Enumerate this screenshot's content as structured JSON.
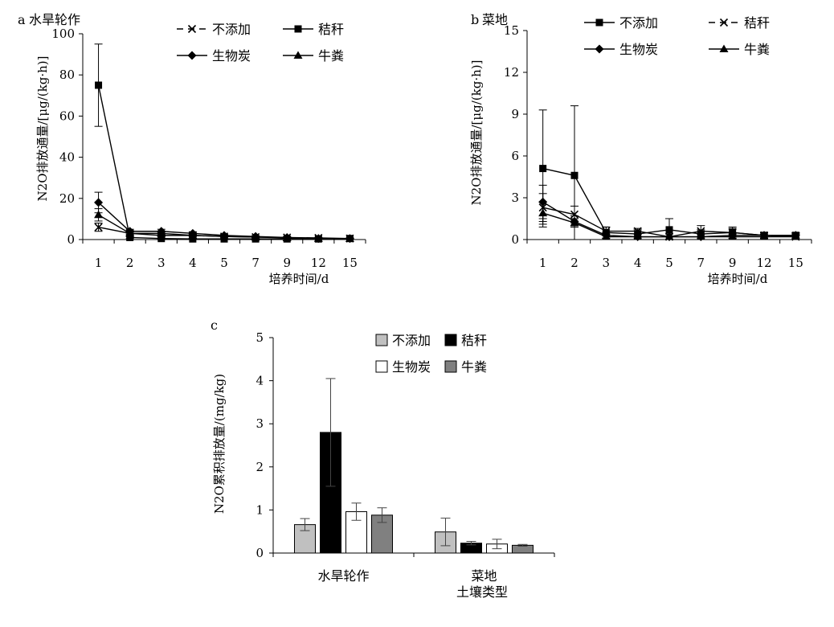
{
  "chart_data": [
    {
      "panel": "a",
      "title": "水旱轮作",
      "type": "line",
      "ylabel": "N2O排放通量/[μg/(kg·h)]",
      "xlabel": "培养时间/d",
      "categories": [
        "1",
        "2",
        "3",
        "4",
        "5",
        "7",
        "9",
        "12",
        "15"
      ],
      "ylim": [
        0,
        100
      ],
      "yticks": [
        "0",
        "20",
        "40",
        "60",
        "80",
        "100"
      ],
      "legend_position": "top-right",
      "series": [
        {
          "name": "不添加",
          "marker": "x",
          "values": [
            6,
            3,
            2,
            2,
            1.5,
            1.2,
            1,
            0.8,
            0.5
          ],
          "errors": [
            2,
            0.6,
            0.5,
            0.5,
            0.4,
            0.3,
            0.3,
            0.2,
            0.2
          ]
        },
        {
          "name": "秸秆",
          "marker": "square",
          "values": [
            75,
            1,
            0.5,
            0.3,
            0.3,
            0.3,
            0.3,
            0.3,
            0.5
          ],
          "errors": [
            20,
            0.5,
            0.3,
            0.2,
            0.2,
            0.2,
            0.2,
            0.2,
            0.3
          ]
        },
        {
          "name": "生物炭",
          "marker": "diamond",
          "values": [
            18,
            4,
            4,
            3,
            2,
            1.5,
            1,
            0.5,
            0.5
          ],
          "errors": [
            5,
            1,
            1,
            0.8,
            0.5,
            0.4,
            0.3,
            0.2,
            0.2
          ]
        },
        {
          "name": "牛粪",
          "marker": "triangle",
          "values": [
            12,
            3,
            3,
            2,
            1.5,
            1.2,
            0.8,
            0.5,
            0.4
          ],
          "errors": [
            3,
            0.8,
            0.7,
            0.5,
            0.4,
            0.3,
            0.3,
            0.2,
            0.2
          ]
        }
      ]
    },
    {
      "panel": "b",
      "title": "菜地",
      "type": "line",
      "ylabel": "N2O排放通量/[μg/(kg·h)]",
      "xlabel": "培养时间/d",
      "categories": [
        "1",
        "2",
        "3",
        "4",
        "5",
        "7",
        "9",
        "12",
        "15"
      ],
      "ylim": [
        0,
        15
      ],
      "yticks": [
        "0",
        "3",
        "6",
        "9",
        "12",
        "15"
      ],
      "legend_position": "top-right",
      "series": [
        {
          "name": "不添加",
          "marker": "square",
          "values": [
            5.1,
            4.6,
            0.5,
            0.4,
            0.7,
            0.4,
            0.5,
            0.3,
            0.3
          ],
          "errors": [
            4.2,
            5.0,
            0.4,
            0.3,
            0.8,
            0.3,
            0.4,
            0.2,
            0.2
          ]
        },
        {
          "name": "秸秆",
          "marker": "x",
          "values": [
            2.3,
            1.8,
            0.6,
            0.6,
            0.2,
            0.6,
            0.5,
            0.3,
            0.2
          ],
          "errors": [
            1.0,
            0.6,
            0.3,
            0.2,
            0.2,
            0.4,
            0.3,
            0.2,
            0.2
          ]
        },
        {
          "name": "生物炭",
          "marker": "diamond",
          "values": [
            2.7,
            1.3,
            0.3,
            0.2,
            0.2,
            0.2,
            0.3,
            0.3,
            0.3
          ],
          "errors": [
            1.2,
            0.4,
            0.2,
            0.2,
            0.2,
            0.2,
            0.2,
            0.2,
            0.2
          ]
        },
        {
          "name": "牛粪",
          "marker": "triangle",
          "values": [
            1.9,
            1.2,
            0.2,
            0.2,
            0.2,
            0.2,
            0.2,
            0.2,
            0.2
          ],
          "errors": [
            0.8,
            0.3,
            0.2,
            0.2,
            0.2,
            0.2,
            0.2,
            0.2,
            0.2
          ]
        }
      ]
    },
    {
      "panel": "c",
      "title": "",
      "type": "bar",
      "ylabel": "N2O累积排放量/(mg/kg)",
      "xlabel": "土壤类型",
      "categories": [
        "水旱轮作",
        "菜地"
      ],
      "ylim": [
        0,
        5
      ],
      "yticks": [
        "0",
        "1",
        "2",
        "3",
        "4",
        "5"
      ],
      "legend_position": "top-center",
      "series": [
        {
          "name": "不添加",
          "color": "#c0c0c0",
          "values": [
            0.66,
            0.49
          ],
          "errors": [
            0.14,
            0.32
          ]
        },
        {
          "name": "秸秆",
          "color": "#000000",
          "values": [
            2.8,
            0.23
          ],
          "errors": [
            1.25,
            0.04
          ]
        },
        {
          "name": "生物炭",
          "color": "#ffffff",
          "values": [
            0.96,
            0.21
          ],
          "errors": [
            0.2,
            0.11
          ]
        },
        {
          "name": "牛粪",
          "color": "#808080",
          "values": [
            0.88,
            0.18
          ],
          "errors": [
            0.17,
            0.02
          ]
        }
      ]
    }
  ]
}
